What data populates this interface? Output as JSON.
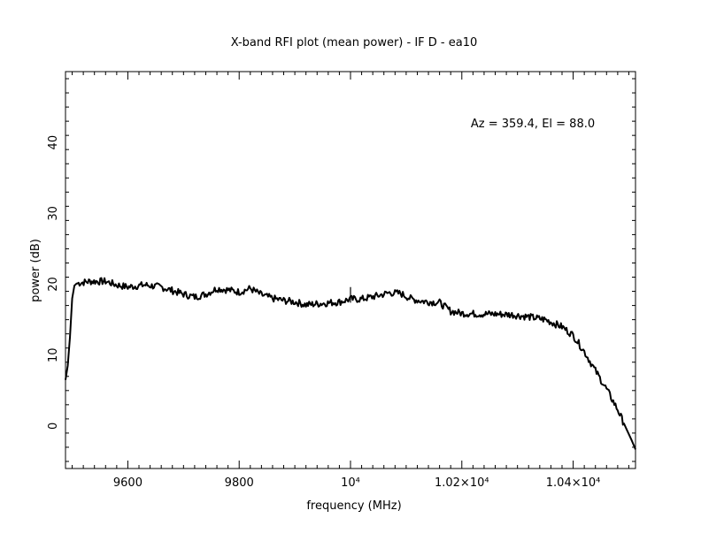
{
  "chart_data": {
    "type": "line",
    "title": "X-band RFI plot (mean power) - IF D - ea10",
    "xlabel": "frequency (MHz)",
    "ylabel": "power (dB)",
    "annotation": "Az = 359.4, El = 88.0",
    "xlim": [
      9488,
      10512
    ],
    "ylim": [
      -6,
      50
    ],
    "x_ticks": [
      {
        "value": 9600,
        "label": "9600"
      },
      {
        "value": 9800,
        "label": "9800"
      },
      {
        "value": 10000,
        "label": "10⁴"
      },
      {
        "value": 10200,
        "label": "1.02×10⁴"
      },
      {
        "value": 10400,
        "label": "1.04×10⁴"
      }
    ],
    "y_ticks": [
      {
        "value": 0,
        "label": "0"
      },
      {
        "value": 10,
        "label": "10"
      },
      {
        "value": 20,
        "label": "20"
      },
      {
        "value": 30,
        "label": "30"
      },
      {
        "value": 40,
        "label": "40"
      }
    ],
    "grid": false,
    "series": [
      {
        "color": "#000000",
        "x": [
          9488,
          9492,
          9496,
          9500,
          9504,
          9508,
          9515,
          9530,
          9560,
          9580,
          9600,
          9630,
          9660,
          9700,
          9720,
          9740,
          9760,
          9780,
          9800,
          9820,
          9840,
          9860,
          9880,
          9900,
          9920,
          9950,
          9980,
          10000,
          10020,
          10050,
          10070,
          10090,
          10110,
          10130,
          10160,
          10180,
          10200,
          10230,
          10260,
          10290,
          10320,
          10350,
          10380,
          10400,
          10420,
          10440,
          10460,
          10480,
          10495,
          10505,
          10512
        ],
        "y": [
          6.5,
          8.5,
          12.5,
          18.0,
          19.8,
          20.1,
          20.2,
          20.4,
          20.4,
          19.9,
          19.6,
          19.9,
          19.6,
          18.6,
          18.2,
          18.6,
          19.4,
          19.2,
          18.9,
          19.4,
          18.5,
          18.0,
          17.7,
          17.5,
          17.1,
          17.3,
          17.5,
          17.9,
          17.9,
          18.4,
          18.8,
          18.7,
          17.9,
          17.6,
          17.4,
          16.2,
          15.9,
          15.8,
          15.8,
          15.7,
          15.4,
          15.0,
          14.0,
          12.8,
          10.5,
          7.8,
          5.2,
          2.3,
          -0.3,
          -2.0,
          -3.3
        ]
      }
    ],
    "spikes": [
      {
        "x": 10000,
        "y": 19.6
      }
    ]
  }
}
